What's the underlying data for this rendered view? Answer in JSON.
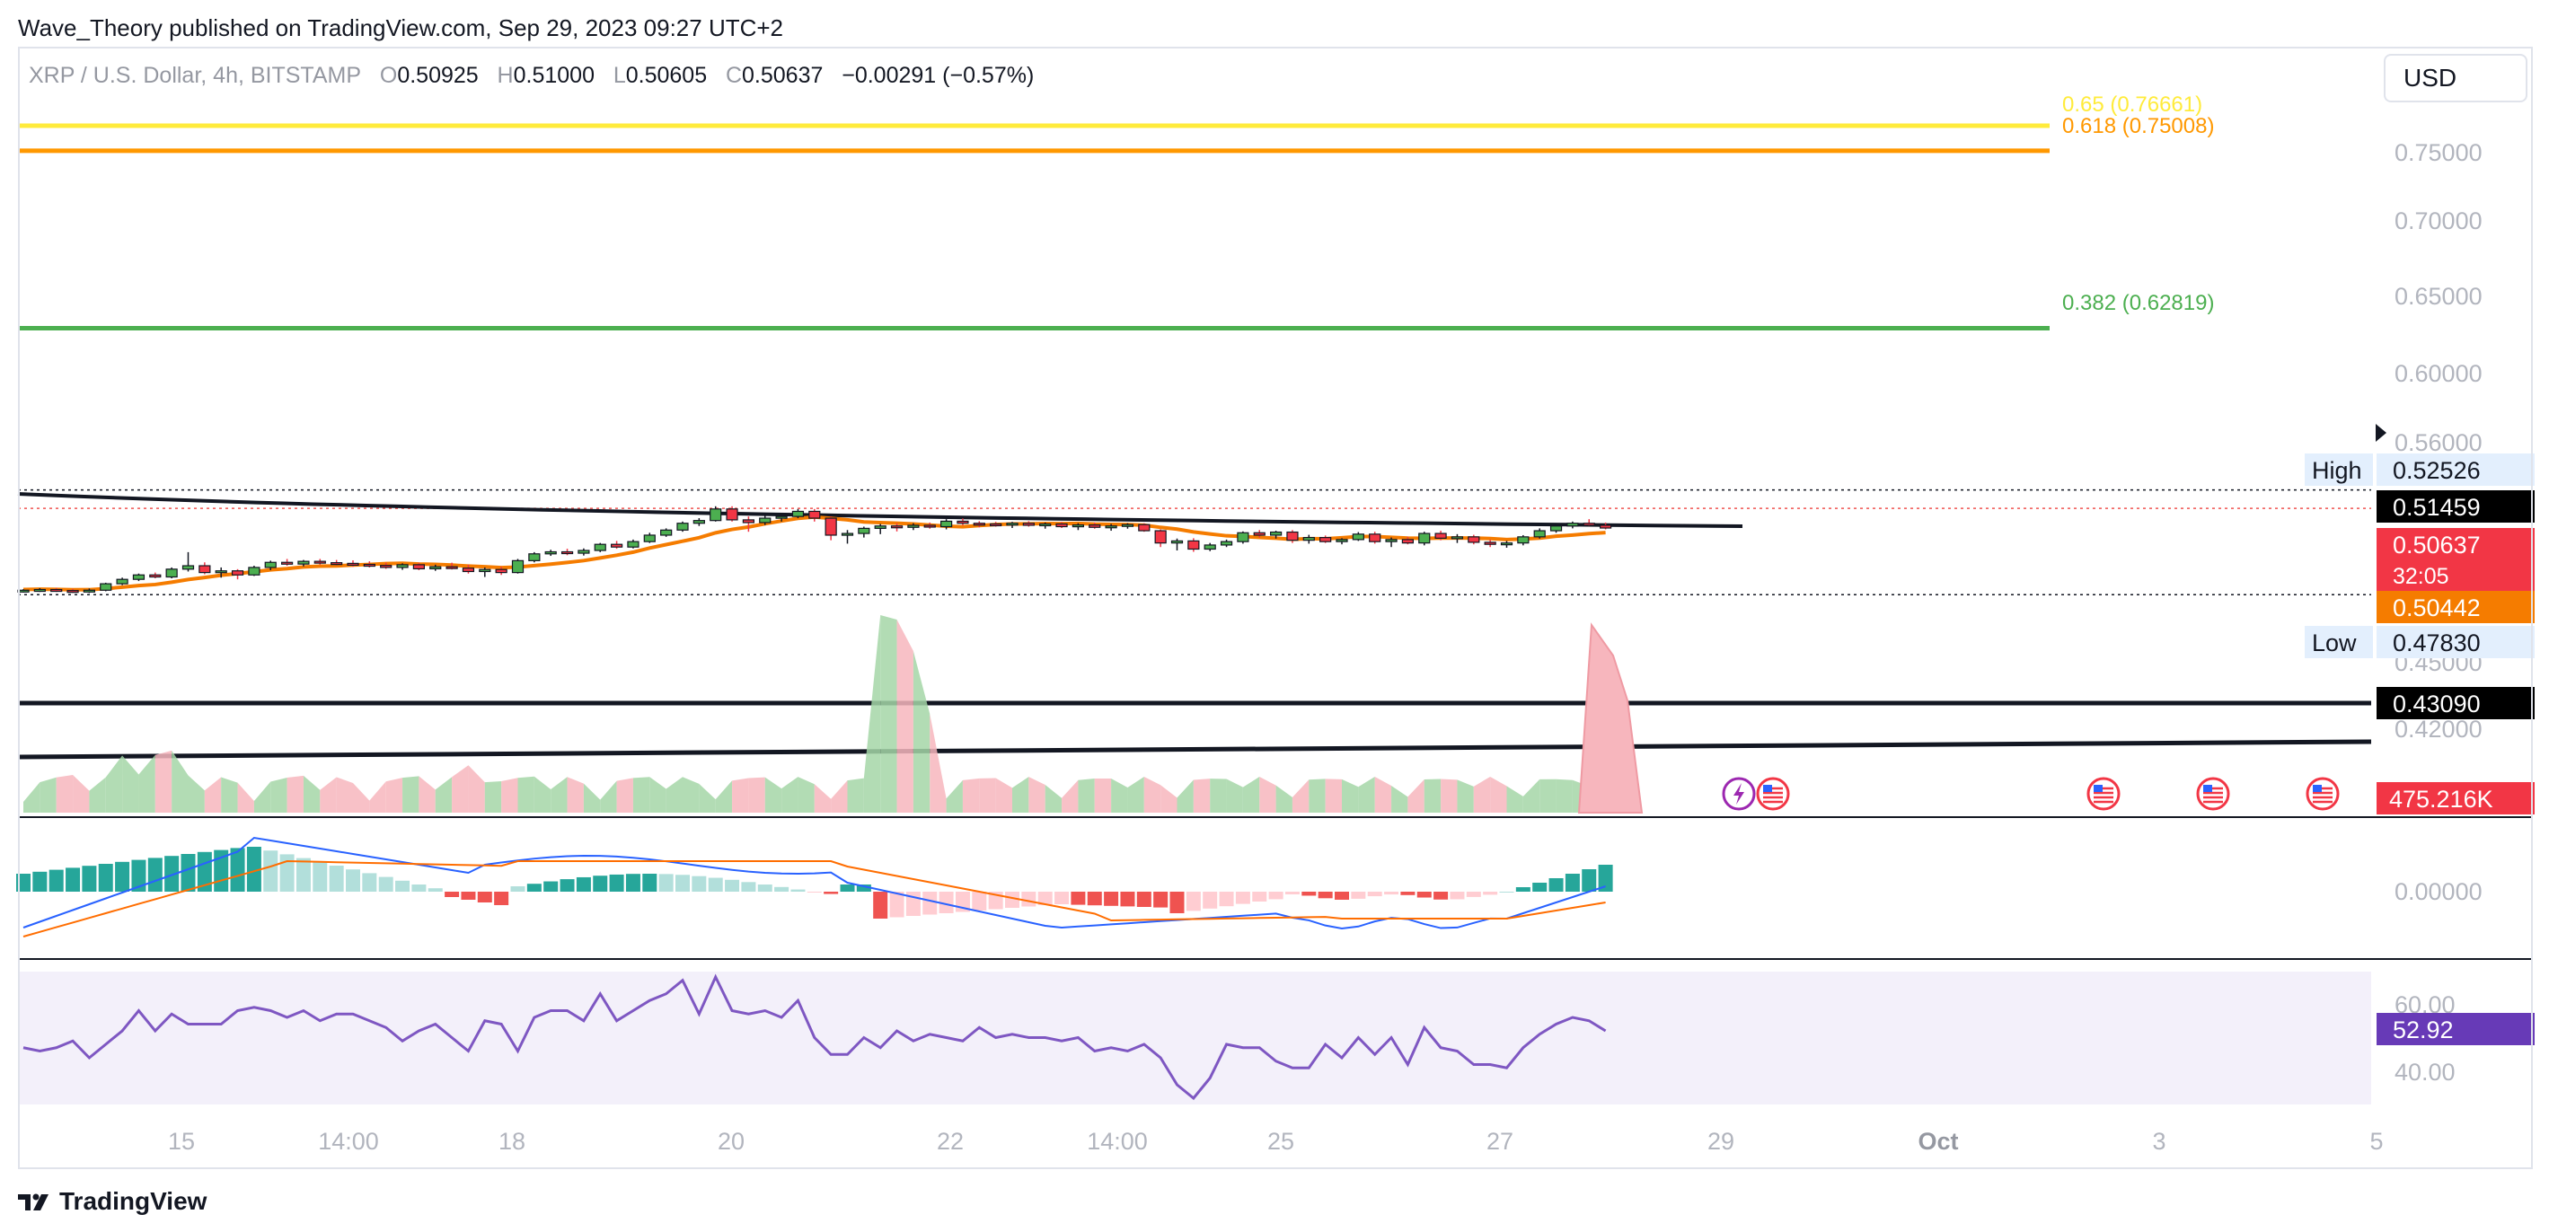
{
  "header": {
    "published": "Wave_Theory published on TradingView.com, Sep 29, 2023 09:27 UTC+2"
  },
  "legend": {
    "symbol": "XRP / U.S. Dollar, 4h, BITSTAMP",
    "o_label": "O",
    "o": "0.50925",
    "h_label": "H",
    "h": "0.51000",
    "l_label": "L",
    "l": "0.50605",
    "c_label": "C",
    "c": "0.50637",
    "change": "−0.00291 (−0.57%)"
  },
  "currency_button": "USD",
  "brand": {
    "name": "TradingView",
    "icon": "tradingview-logo-icon"
  },
  "colors": {
    "up": "#26a69a",
    "down": "#ef5350",
    "candle_up": "#4caf50",
    "candle_down": "#f23645",
    "fib_065": "#ffeb3b",
    "fib_0618": "#ff9800",
    "fib_0382": "#4caf50",
    "ma": "#f57c00",
    "macd": "#2962ff",
    "signal": "#ff6d00",
    "rsi": "#7e57c2",
    "grid_text": "#b2b5be"
  },
  "chart_data": {
    "type": "candlestick",
    "price_axis": {
      "ticks": [
        "0.75000",
        "0.70000",
        "0.65000",
        "0.60000",
        "0.56000",
        "0.45000",
        "0.42000"
      ],
      "tick_values": [
        0.75,
        0.7,
        0.65,
        0.6,
        0.56,
        0.45,
        0.42
      ],
      "labels": [
        {
          "text": "0.52526",
          "value": 0.52526,
          "tag": "High",
          "style": "plain"
        },
        {
          "text": "0.51459",
          "value": 0.51459,
          "style": "black"
        },
        {
          "text": "0.50637",
          "value": 0.50637,
          "countdown": "32:05",
          "style": "red"
        },
        {
          "text": "0.50442",
          "value": 0.50442,
          "style": "orange"
        },
        {
          "text": "0.47830",
          "value": 0.4783,
          "tag": "Low",
          "style": "plain"
        },
        {
          "text": "0.43090",
          "value": 0.4309,
          "style": "black"
        }
      ]
    },
    "fib_levels": [
      {
        "label": "0.65 (0.76661)",
        "value": 0.76661,
        "color": "#ffeb3b"
      },
      {
        "label": "0.618 (0.75008)",
        "value": 0.75008,
        "color": "#ff9800"
      },
      {
        "label": "0.382 (0.62819)",
        "value": 0.62819,
        "color": "#4caf50"
      }
    ],
    "horizontal_levels": [
      0.51459,
      0.4783,
      0.50637
    ],
    "trendlines": [
      {
        "from": [
          0,
          0.5205
        ],
        "to": [
          110,
          0.5125
        ],
        "style": "black"
      },
      {
        "from": [
          0,
          0.4309
        ],
        "to": [
          200,
          0.4309
        ],
        "style": "black"
      },
      {
        "from": [
          0,
          0.4195
        ],
        "to": [
          200,
          0.4235
        ],
        "style": "black"
      }
    ],
    "volume_axis_label": "475.216K",
    "macd_axis_label": "0.00000",
    "rsi": {
      "ticks": [
        "60.00",
        "40.00"
      ],
      "tick_values": [
        60,
        40
      ],
      "last": "52.92",
      "values": [
        47,
        46,
        47,
        49,
        44,
        48,
        52,
        58,
        52,
        57,
        54,
        54,
        54,
        58,
        59,
        58,
        56,
        58,
        55,
        57,
        57,
        55,
        53,
        49,
        52,
        54,
        50,
        46,
        55,
        54,
        46,
        56,
        58,
        58,
        55,
        63,
        55,
        58,
        61,
        63,
        67,
        57,
        68,
        58,
        57,
        58,
        56,
        61,
        50,
        45,
        45,
        50,
        47,
        52,
        49,
        51,
        50,
        49,
        53,
        50,
        51,
        50,
        50,
        49,
        50,
        46,
        47,
        46,
        48,
        44,
        36,
        32,
        38,
        48,
        47,
        47,
        43,
        41,
        41,
        48,
        44,
        50,
        45,
        50,
        42,
        53,
        47,
        46,
        42,
        42,
        41,
        47,
        51,
        54,
        56,
        55,
        52
      ]
    },
    "x_axis": {
      "labels": [
        "15",
        "14:00",
        "18",
        "20",
        "22",
        "14:00",
        "25",
        "27",
        "29",
        "Oct",
        "3",
        "5"
      ],
      "bold": [
        false,
        false,
        false,
        false,
        false,
        false,
        false,
        false,
        false,
        true,
        false,
        false
      ]
    },
    "candles": [
      [
        0.482,
        0.4826,
        0.4816,
        0.4823
      ],
      [
        0.4823,
        0.4829,
        0.4818,
        0.4825
      ],
      [
        0.4825,
        0.483,
        0.4818,
        0.4822
      ],
      [
        0.4822,
        0.4827,
        0.4815,
        0.482
      ],
      [
        0.482,
        0.4828,
        0.4815,
        0.4823
      ],
      [
        0.4823,
        0.4845,
        0.482,
        0.4842
      ],
      [
        0.4842,
        0.486,
        0.4838,
        0.4855
      ],
      [
        0.4855,
        0.4872,
        0.485,
        0.4868
      ],
      [
        0.4868,
        0.4875,
        0.4858,
        0.4862
      ],
      [
        0.4862,
        0.489,
        0.4858,
        0.4885
      ],
      [
        0.4885,
        0.4935,
        0.4878,
        0.4895
      ],
      [
        0.4895,
        0.4905,
        0.487,
        0.4875
      ],
      [
        0.4875,
        0.489,
        0.486,
        0.488
      ],
      [
        0.488,
        0.4885,
        0.4855,
        0.4868
      ],
      [
        0.4868,
        0.4895,
        0.4865,
        0.489
      ],
      [
        0.489,
        0.491,
        0.4882,
        0.4905
      ],
      [
        0.4905,
        0.4915,
        0.4895,
        0.49
      ],
      [
        0.49,
        0.4912,
        0.4893,
        0.4908
      ],
      [
        0.4908,
        0.4915,
        0.4898,
        0.4904
      ],
      [
        0.4904,
        0.4912,
        0.4896,
        0.4902
      ],
      [
        0.4902,
        0.4911,
        0.4892,
        0.4899
      ],
      [
        0.4899,
        0.4908,
        0.489,
        0.4896
      ],
      [
        0.4896,
        0.4904,
        0.4886,
        0.489
      ],
      [
        0.489,
        0.4902,
        0.4883,
        0.4898
      ],
      [
        0.4898,
        0.4904,
        0.4882,
        0.4886
      ],
      [
        0.4886,
        0.4898,
        0.488,
        0.4892
      ],
      [
        0.4892,
        0.4904,
        0.4884,
        0.4888
      ],
      [
        0.4888,
        0.4898,
        0.4872,
        0.4878
      ],
      [
        0.4878,
        0.489,
        0.4862,
        0.4884
      ],
      [
        0.4884,
        0.4892,
        0.4868,
        0.4875
      ],
      [
        0.4875,
        0.4915,
        0.4872,
        0.491
      ],
      [
        0.491,
        0.4935,
        0.4905,
        0.493
      ],
      [
        0.493,
        0.4942,
        0.4924,
        0.4936
      ],
      [
        0.4936,
        0.4945,
        0.4926,
        0.4932
      ],
      [
        0.4932,
        0.4946,
        0.4925,
        0.494
      ],
      [
        0.494,
        0.4962,
        0.4935,
        0.4958
      ],
      [
        0.4958,
        0.4968,
        0.4945,
        0.495
      ],
      [
        0.495,
        0.4972,
        0.4946,
        0.4966
      ],
      [
        0.4966,
        0.4992,
        0.4962,
        0.4985
      ],
      [
        0.4985,
        0.5005,
        0.498,
        0.5
      ],
      [
        0.5,
        0.5025,
        0.4995,
        0.502
      ],
      [
        0.502,
        0.5035,
        0.5012,
        0.5028
      ],
      [
        0.5028,
        0.507,
        0.5025,
        0.5062
      ],
      [
        0.5062,
        0.507,
        0.5025,
        0.503
      ],
      [
        0.503,
        0.504,
        0.4995,
        0.5022
      ],
      [
        0.5022,
        0.5042,
        0.5015,
        0.5035
      ],
      [
        0.5035,
        0.5048,
        0.5025,
        0.504
      ],
      [
        0.504,
        0.5062,
        0.5035,
        0.5055
      ],
      [
        0.5055,
        0.5062,
        0.5025,
        0.5035
      ],
      [
        0.5035,
        0.504,
        0.497,
        0.4985
      ],
      [
        0.4985,
        0.5,
        0.496,
        0.499
      ],
      [
        0.499,
        0.501,
        0.4978,
        0.5005
      ],
      [
        0.5005,
        0.5018,
        0.4988,
        0.5012
      ],
      [
        0.5012,
        0.502,
        0.4996,
        0.5008
      ],
      [
        0.5008,
        0.502,
        0.5,
        0.5014
      ],
      [
        0.5014,
        0.5022,
        0.5004,
        0.501
      ],
      [
        0.501,
        0.5032,
        0.5002,
        0.5026
      ],
      [
        0.5026,
        0.5034,
        0.5014,
        0.502
      ],
      [
        0.502,
        0.5026,
        0.5008,
        0.5018
      ],
      [
        0.5018,
        0.5024,
        0.501,
        0.5016
      ],
      [
        0.5016,
        0.5024,
        0.5006,
        0.502
      ],
      [
        0.502,
        0.5026,
        0.501,
        0.5014
      ],
      [
        0.5014,
        0.5022,
        0.5004,
        0.5018
      ],
      [
        0.5018,
        0.5024,
        0.5006,
        0.501
      ],
      [
        0.501,
        0.502,
        0.5,
        0.5015
      ],
      [
        0.5015,
        0.5022,
        0.5004,
        0.5008
      ],
      [
        0.5008,
        0.5018,
        0.4998,
        0.5012
      ],
      [
        0.5012,
        0.502,
        0.5004,
        0.5016
      ],
      [
        0.5016,
        0.502,
        0.4995,
        0.4998
      ],
      [
        0.4998,
        0.5002,
        0.495,
        0.4962
      ],
      [
        0.4962,
        0.4975,
        0.494,
        0.4968
      ],
      [
        0.4968,
        0.4976,
        0.4936,
        0.4944
      ],
      [
        0.4944,
        0.4962,
        0.4938,
        0.4956
      ],
      [
        0.4956,
        0.4972,
        0.495,
        0.4966
      ],
      [
        0.4966,
        0.4996,
        0.496,
        0.4992
      ],
      [
        0.4992,
        0.5,
        0.4978,
        0.4985
      ],
      [
        0.4985,
        0.4998,
        0.4975,
        0.4994
      ],
      [
        0.4994,
        0.5,
        0.4962,
        0.497
      ],
      [
        0.497,
        0.4986,
        0.496,
        0.4978
      ],
      [
        0.4978,
        0.4984,
        0.4962,
        0.4966
      ],
      [
        0.4966,
        0.4976,
        0.4958,
        0.4972
      ],
      [
        0.4972,
        0.4994,
        0.4968,
        0.4988
      ],
      [
        0.4988,
        0.4995,
        0.496,
        0.4966
      ],
      [
        0.4966,
        0.4978,
        0.495,
        0.4972
      ],
      [
        0.4972,
        0.498,
        0.4958,
        0.4962
      ],
      [
        0.4962,
        0.4995,
        0.4955,
        0.499
      ],
      [
        0.499,
        0.4998,
        0.497,
        0.4976
      ],
      [
        0.4976,
        0.4988,
        0.4962,
        0.498
      ],
      [
        0.498,
        0.4986,
        0.4958,
        0.4964
      ],
      [
        0.4964,
        0.4972,
        0.495,
        0.4958
      ],
      [
        0.4958,
        0.4968,
        0.4948,
        0.4962
      ],
      [
        0.4962,
        0.4985,
        0.4955,
        0.498
      ],
      [
        0.498,
        0.5005,
        0.4975,
        0.4998
      ],
      [
        0.4998,
        0.502,
        0.4992,
        0.5012
      ],
      [
        0.5012,
        0.5025,
        0.5005,
        0.502
      ],
      [
        0.502,
        0.5032,
        0.5012,
        0.5014
      ],
      [
        0.5014,
        0.5022,
        0.5002,
        0.5006
      ]
    ]
  }
}
